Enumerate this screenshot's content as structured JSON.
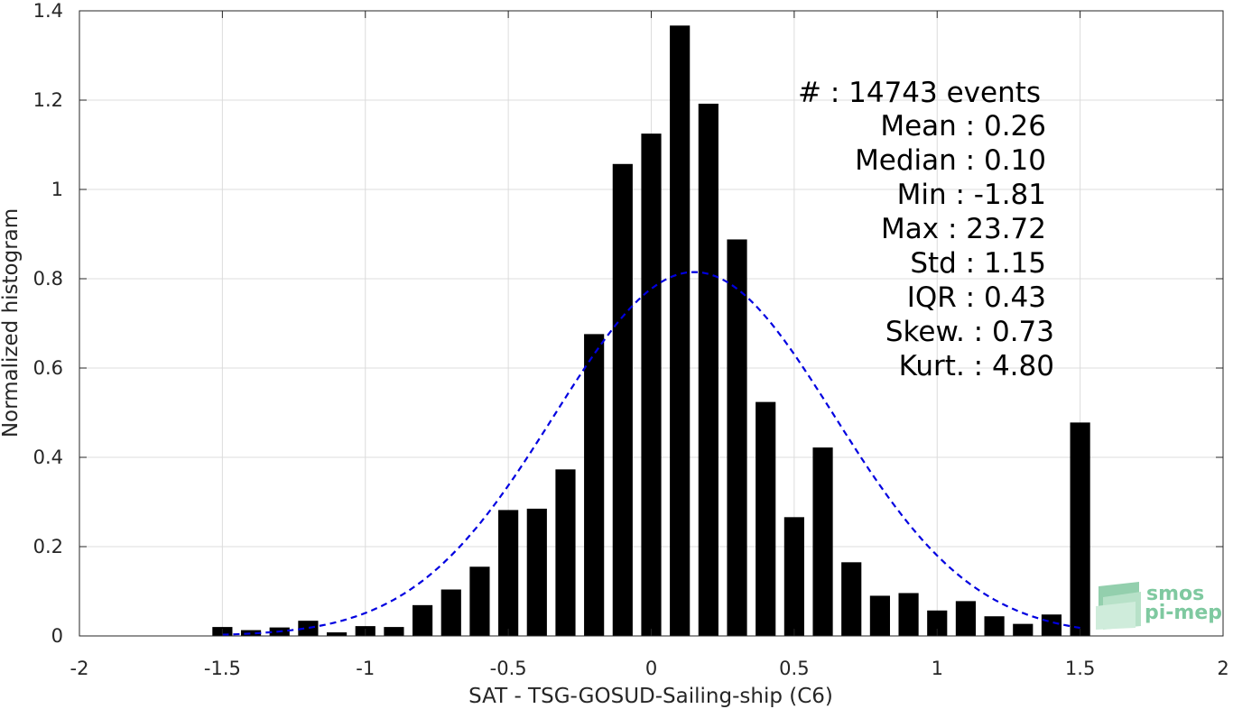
{
  "chart_data": {
    "type": "bar",
    "title": "",
    "xlabel": "SAT - TSG-GOSUD-Sailing-ship (C6)",
    "ylabel": "Normalized histogram",
    "xlim": [
      -2,
      2
    ],
    "ylim": [
      0,
      1.4
    ],
    "grid": true,
    "xticks": [
      -2,
      -1.5,
      -1,
      -0.5,
      0,
      0.5,
      1,
      1.5,
      2
    ],
    "xtick_labels": [
      "-2",
      "-1.5",
      "-1",
      "-0.5",
      "0",
      "0.5",
      "1",
      "1.5",
      "2"
    ],
    "yticks": [
      0,
      0.2,
      0.4,
      0.6,
      0.8,
      1,
      1.2,
      1.4
    ],
    "ytick_labels": [
      "0",
      "0.2",
      "0.4",
      "0.6",
      "0.8",
      "1",
      "1.2",
      "1.4"
    ],
    "bin_width": 0.1,
    "bar_width": 0.07,
    "x": [
      -1.5,
      -1.4,
      -1.3,
      -1.2,
      -1.1,
      -1.0,
      -0.9,
      -0.8,
      -0.7,
      -0.6,
      -0.5,
      -0.4,
      -0.3,
      -0.2,
      -0.1,
      0.0,
      0.1,
      0.2,
      0.3,
      0.4,
      0.5,
      0.6,
      0.7,
      0.8,
      0.9,
      1.0,
      1.1,
      1.2,
      1.3,
      1.4,
      1.5
    ],
    "values": [
      0.02,
      0.013,
      0.019,
      0.034,
      0.008,
      0.022,
      0.02,
      0.069,
      0.104,
      0.155,
      0.282,
      0.285,
      0.373,
      0.676,
      1.057,
      1.125,
      1.367,
      1.192,
      0.888,
      0.524,
      0.266,
      0.422,
      0.165,
      0.09,
      0.096,
      0.057,
      0.078,
      0.044,
      0.027,
      0.048,
      0.478
    ],
    "bar_color": "#000000",
    "fit_curve": {
      "style": "dashed",
      "color": "#0000e0",
      "x_range": [
        -1.5,
        1.5
      ],
      "peak": 0.815,
      "peak_x": 0.15,
      "note_hidden": true
    },
    "stats_box": {
      "count": "#  : 14743 events",
      "mean": "Mean : 0.26",
      "median": "Median : 0.10",
      "min": "Min : -1.81",
      "max": "Max : 23.72",
      "std": "Std : 1.15",
      "iqr": "IQR : 0.43",
      "skew": "Skew. : 0.73",
      "kurt": "Kurt. : 4.80"
    }
  },
  "logo": {
    "line1": "smos",
    "line2": "pi-mep",
    "color": "#7fc9a0"
  }
}
